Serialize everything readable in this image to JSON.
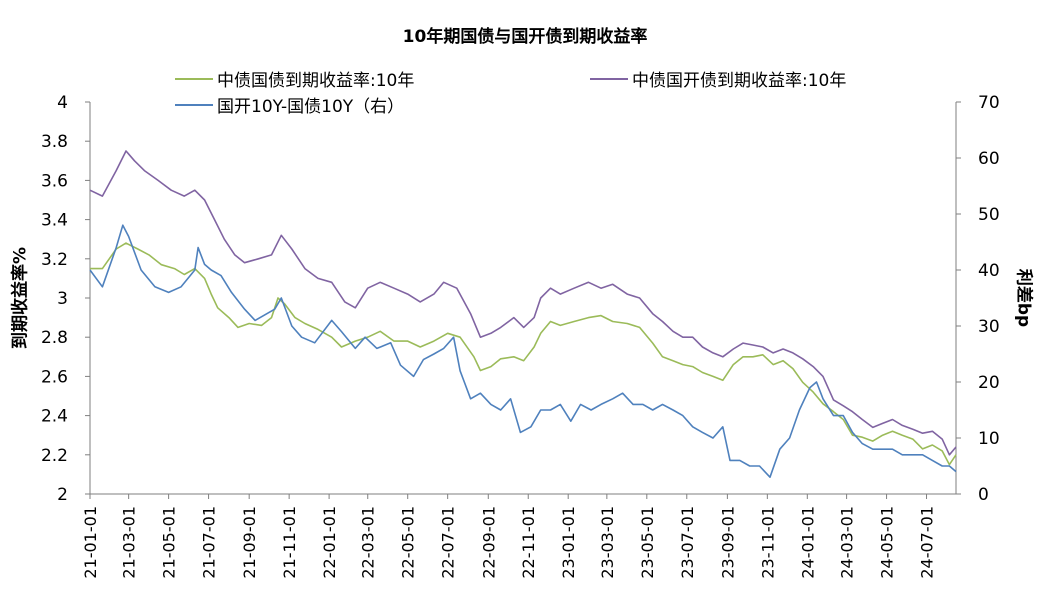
{
  "chart_data": {
    "type": "line",
    "title": "10年期国债与国开债到期收益率",
    "ylabel_left": "到期收益率%",
    "ylabel_right": "利差bp",
    "ylim_left": [
      2,
      4
    ],
    "ylim_right": [
      0,
      70
    ],
    "yticks_left": [
      "4",
      "3.8",
      "3.6",
      "3.4",
      "3.2",
      "3",
      "2.8",
      "2.6",
      "2.4",
      "2.2",
      "2"
    ],
    "yticks_right": [
      "70",
      "60",
      "50",
      "40",
      "30",
      "20",
      "10",
      "0"
    ],
    "x_ticks": [
      "21-01-01",
      "21-03-01",
      "21-05-01",
      "21-07-01",
      "21-09-01",
      "21-11-01",
      "22-01-01",
      "22-03-01",
      "22-05-01",
      "22-07-01",
      "22-09-01",
      "22-11-01",
      "23-01-01",
      "23-03-01",
      "23-05-01",
      "23-07-01",
      "23-09-01",
      "23-11-01",
      "24-01-01",
      "24-03-01",
      "24-05-01",
      "24-07-01"
    ],
    "x_range": [
      "2021-01-01",
      "2024-08-15"
    ],
    "grid": false,
    "legend_position": "top",
    "series": [
      {
        "name": "中债国债到期收益率:10年",
        "axis": "left",
        "color": "#9bbb59",
        "points": [
          [
            "2021-01-01",
            3.15
          ],
          [
            "2021-01-20",
            3.15
          ],
          [
            "2021-02-10",
            3.25
          ],
          [
            "2021-02-25",
            3.28
          ],
          [
            "2021-03-15",
            3.25
          ],
          [
            "2021-04-01",
            3.22
          ],
          [
            "2021-04-20",
            3.17
          ],
          [
            "2021-05-10",
            3.15
          ],
          [
            "2021-05-25",
            3.12
          ],
          [
            "2021-06-10",
            3.15
          ],
          [
            "2021-06-25",
            3.1
          ],
          [
            "2021-07-05",
            3.02
          ],
          [
            "2021-07-15",
            2.95
          ],
          [
            "2021-08-01",
            2.9
          ],
          [
            "2021-08-15",
            2.85
          ],
          [
            "2021-09-01",
            2.87
          ],
          [
            "2021-09-20",
            2.86
          ],
          [
            "2021-10-05",
            2.9
          ],
          [
            "2021-10-15",
            3.0
          ],
          [
            "2021-10-25",
            2.97
          ],
          [
            "2021-11-10",
            2.9
          ],
          [
            "2021-11-25",
            2.87
          ],
          [
            "2021-12-15",
            2.84
          ],
          [
            "2022-01-05",
            2.8
          ],
          [
            "2022-01-20",
            2.75
          ],
          [
            "2022-02-10",
            2.78
          ],
          [
            "2022-03-01",
            2.8
          ],
          [
            "2022-03-20",
            2.83
          ],
          [
            "2022-04-10",
            2.78
          ],
          [
            "2022-05-01",
            2.78
          ],
          [
            "2022-05-20",
            2.75
          ],
          [
            "2022-06-10",
            2.78
          ],
          [
            "2022-07-01",
            2.82
          ],
          [
            "2022-07-20",
            2.8
          ],
          [
            "2022-08-10",
            2.7
          ],
          [
            "2022-08-20",
            2.63
          ],
          [
            "2022-09-05",
            2.65
          ],
          [
            "2022-09-20",
            2.69
          ],
          [
            "2022-10-10",
            2.7
          ],
          [
            "2022-10-25",
            2.68
          ],
          [
            "2022-11-10",
            2.75
          ],
          [
            "2022-11-20",
            2.82
          ],
          [
            "2022-12-05",
            2.88
          ],
          [
            "2022-12-20",
            2.86
          ],
          [
            "2023-01-10",
            2.88
          ],
          [
            "2023-02-01",
            2.9
          ],
          [
            "2023-02-20",
            2.91
          ],
          [
            "2023-03-10",
            2.88
          ],
          [
            "2023-04-01",
            2.87
          ],
          [
            "2023-04-20",
            2.85
          ],
          [
            "2023-05-10",
            2.77
          ],
          [
            "2023-05-25",
            2.7
          ],
          [
            "2023-06-10",
            2.68
          ],
          [
            "2023-06-25",
            2.66
          ],
          [
            "2023-07-10",
            2.65
          ],
          [
            "2023-07-25",
            2.62
          ],
          [
            "2023-08-10",
            2.6
          ],
          [
            "2023-08-25",
            2.58
          ],
          [
            "2023-09-10",
            2.66
          ],
          [
            "2023-09-25",
            2.7
          ],
          [
            "2023-10-10",
            2.7
          ],
          [
            "2023-10-25",
            2.71
          ],
          [
            "2023-11-10",
            2.66
          ],
          [
            "2023-11-25",
            2.68
          ],
          [
            "2023-12-10",
            2.64
          ],
          [
            "2023-12-25",
            2.57
          ],
          [
            "2024-01-10",
            2.52
          ],
          [
            "2024-01-25",
            2.46
          ],
          [
            "2024-02-10",
            2.42
          ],
          [
            "2024-02-25",
            2.38
          ],
          [
            "2024-03-10",
            2.3
          ],
          [
            "2024-03-25",
            2.29
          ],
          [
            "2024-04-10",
            2.27
          ],
          [
            "2024-04-25",
            2.3
          ],
          [
            "2024-05-10",
            2.32
          ],
          [
            "2024-05-25",
            2.3
          ],
          [
            "2024-06-10",
            2.28
          ],
          [
            "2024-06-25",
            2.23
          ],
          [
            "2024-07-10",
            2.25
          ],
          [
            "2024-07-25",
            2.22
          ],
          [
            "2024-08-05",
            2.15
          ],
          [
            "2024-08-15",
            2.2
          ]
        ]
      },
      {
        "name": "中债国开债到期收益率:10年",
        "axis": "left",
        "color": "#8064a2",
        "points": [
          [
            "2021-01-01",
            3.55
          ],
          [
            "2021-01-20",
            3.52
          ],
          [
            "2021-02-10",
            3.65
          ],
          [
            "2021-02-25",
            3.75
          ],
          [
            "2021-03-10",
            3.7
          ],
          [
            "2021-03-25",
            3.65
          ],
          [
            "2021-04-15",
            3.6
          ],
          [
            "2021-05-05",
            3.55
          ],
          [
            "2021-05-25",
            3.52
          ],
          [
            "2021-06-10",
            3.55
          ],
          [
            "2021-06-25",
            3.5
          ],
          [
            "2021-07-10",
            3.4
          ],
          [
            "2021-07-25",
            3.3
          ],
          [
            "2021-08-10",
            3.22
          ],
          [
            "2021-08-25",
            3.18
          ],
          [
            "2021-09-15",
            3.2
          ],
          [
            "2021-10-05",
            3.22
          ],
          [
            "2021-10-20",
            3.32
          ],
          [
            "2021-11-05",
            3.25
          ],
          [
            "2021-11-25",
            3.15
          ],
          [
            "2021-12-15",
            3.1
          ],
          [
            "2022-01-05",
            3.08
          ],
          [
            "2022-01-25",
            2.98
          ],
          [
            "2022-02-10",
            2.95
          ],
          [
            "2022-03-01",
            3.05
          ],
          [
            "2022-03-20",
            3.08
          ],
          [
            "2022-04-10",
            3.05
          ],
          [
            "2022-05-01",
            3.02
          ],
          [
            "2022-05-20",
            2.98
          ],
          [
            "2022-06-10",
            3.02
          ],
          [
            "2022-06-25",
            3.08
          ],
          [
            "2022-07-15",
            3.05
          ],
          [
            "2022-08-05",
            2.92
          ],
          [
            "2022-08-20",
            2.8
          ],
          [
            "2022-09-05",
            2.82
          ],
          [
            "2022-09-20",
            2.85
          ],
          [
            "2022-10-10",
            2.9
          ],
          [
            "2022-10-25",
            2.85
          ],
          [
            "2022-11-10",
            2.9
          ],
          [
            "2022-11-20",
            3.0
          ],
          [
            "2022-12-05",
            3.05
          ],
          [
            "2022-12-20",
            3.02
          ],
          [
            "2023-01-10",
            3.05
          ],
          [
            "2023-02-01",
            3.08
          ],
          [
            "2023-02-20",
            3.05
          ],
          [
            "2023-03-10",
            3.07
          ],
          [
            "2023-04-01",
            3.02
          ],
          [
            "2023-04-20",
            3.0
          ],
          [
            "2023-05-10",
            2.92
          ],
          [
            "2023-05-25",
            2.88
          ],
          [
            "2023-06-10",
            2.83
          ],
          [
            "2023-06-25",
            2.8
          ],
          [
            "2023-07-10",
            2.8
          ],
          [
            "2023-07-25",
            2.75
          ],
          [
            "2023-08-10",
            2.72
          ],
          [
            "2023-08-25",
            2.7
          ],
          [
            "2023-09-10",
            2.74
          ],
          [
            "2023-09-25",
            2.77
          ],
          [
            "2023-10-10",
            2.76
          ],
          [
            "2023-10-25",
            2.75
          ],
          [
            "2023-11-10",
            2.72
          ],
          [
            "2023-11-25",
            2.74
          ],
          [
            "2023-12-10",
            2.72
          ],
          [
            "2023-12-25",
            2.69
          ],
          [
            "2024-01-10",
            2.65
          ],
          [
            "2024-01-25",
            2.6
          ],
          [
            "2024-02-10",
            2.48
          ],
          [
            "2024-02-25",
            2.45
          ],
          [
            "2024-03-10",
            2.42
          ],
          [
            "2024-03-25",
            2.38
          ],
          [
            "2024-04-10",
            2.34
          ],
          [
            "2024-04-25",
            2.36
          ],
          [
            "2024-05-10",
            2.38
          ],
          [
            "2024-05-25",
            2.35
          ],
          [
            "2024-06-10",
            2.33
          ],
          [
            "2024-06-25",
            2.31
          ],
          [
            "2024-07-10",
            2.32
          ],
          [
            "2024-07-25",
            2.28
          ],
          [
            "2024-08-05",
            2.2
          ],
          [
            "2024-08-15",
            2.24
          ]
        ]
      },
      {
        "name": "国开10Y-国债10Y（右）",
        "axis": "right",
        "color": "#4f81bd",
        "points": [
          [
            "2021-01-01",
            40
          ],
          [
            "2021-01-20",
            37
          ],
          [
            "2021-02-10",
            44
          ],
          [
            "2021-02-20",
            48
          ],
          [
            "2021-03-01",
            46
          ],
          [
            "2021-03-20",
            40
          ],
          [
            "2021-04-10",
            37
          ],
          [
            "2021-05-01",
            36
          ],
          [
            "2021-05-20",
            37
          ],
          [
            "2021-06-10",
            40
          ],
          [
            "2021-06-15",
            44
          ],
          [
            "2021-06-25",
            41
          ],
          [
            "2021-07-05",
            40
          ],
          [
            "2021-07-20",
            39
          ],
          [
            "2021-08-05",
            36
          ],
          [
            "2021-08-25",
            33
          ],
          [
            "2021-09-10",
            31
          ],
          [
            "2021-09-25",
            32
          ],
          [
            "2021-10-10",
            33
          ],
          [
            "2021-10-20",
            35
          ],
          [
            "2021-11-05",
            30
          ],
          [
            "2021-11-20",
            28
          ],
          [
            "2021-12-10",
            27
          ],
          [
            "2022-01-05",
            31
          ],
          [
            "2022-01-20",
            29
          ],
          [
            "2022-02-10",
            26
          ],
          [
            "2022-02-25",
            28
          ],
          [
            "2022-03-15",
            26
          ],
          [
            "2022-04-05",
            27
          ],
          [
            "2022-04-20",
            23
          ],
          [
            "2022-05-10",
            21
          ],
          [
            "2022-05-25",
            24
          ],
          [
            "2022-06-10",
            25
          ],
          [
            "2022-06-25",
            26
          ],
          [
            "2022-07-10",
            28
          ],
          [
            "2022-07-20",
            22
          ],
          [
            "2022-08-05",
            17
          ],
          [
            "2022-08-20",
            18
          ],
          [
            "2022-09-05",
            16
          ],
          [
            "2022-09-20",
            15
          ],
          [
            "2022-10-05",
            17
          ],
          [
            "2022-10-20",
            11
          ],
          [
            "2022-11-05",
            12
          ],
          [
            "2022-11-20",
            15
          ],
          [
            "2022-12-05",
            15
          ],
          [
            "2022-12-20",
            16
          ],
          [
            "2023-01-05",
            13
          ],
          [
            "2023-01-20",
            16
          ],
          [
            "2023-02-05",
            15
          ],
          [
            "2023-02-20",
            16
          ],
          [
            "2023-03-10",
            17
          ],
          [
            "2023-03-25",
            18
          ],
          [
            "2023-04-10",
            16
          ],
          [
            "2023-04-25",
            16
          ],
          [
            "2023-05-10",
            15
          ],
          [
            "2023-05-25",
            16
          ],
          [
            "2023-06-10",
            15
          ],
          [
            "2023-06-25",
            14
          ],
          [
            "2023-07-10",
            12
          ],
          [
            "2023-07-25",
            11
          ],
          [
            "2023-08-10",
            10
          ],
          [
            "2023-08-25",
            12
          ],
          [
            "2023-09-05",
            6
          ],
          [
            "2023-09-20",
            6
          ],
          [
            "2023-10-05",
            5
          ],
          [
            "2023-10-20",
            5
          ],
          [
            "2023-11-05",
            3
          ],
          [
            "2023-11-20",
            8
          ],
          [
            "2023-12-05",
            10
          ],
          [
            "2023-12-20",
            15
          ],
          [
            "2024-01-05",
            19
          ],
          [
            "2024-01-15",
            20
          ],
          [
            "2024-01-25",
            17
          ],
          [
            "2024-02-10",
            14
          ],
          [
            "2024-02-25",
            14
          ],
          [
            "2024-03-10",
            11
          ],
          [
            "2024-03-25",
            9
          ],
          [
            "2024-04-10",
            8
          ],
          [
            "2024-04-25",
            8
          ],
          [
            "2024-05-10",
            8
          ],
          [
            "2024-05-25",
            7
          ],
          [
            "2024-06-10",
            7
          ],
          [
            "2024-06-25",
            7
          ],
          [
            "2024-07-10",
            6
          ],
          [
            "2024-07-25",
            5
          ],
          [
            "2024-08-05",
            5
          ],
          [
            "2024-08-15",
            4
          ]
        ]
      }
    ]
  }
}
